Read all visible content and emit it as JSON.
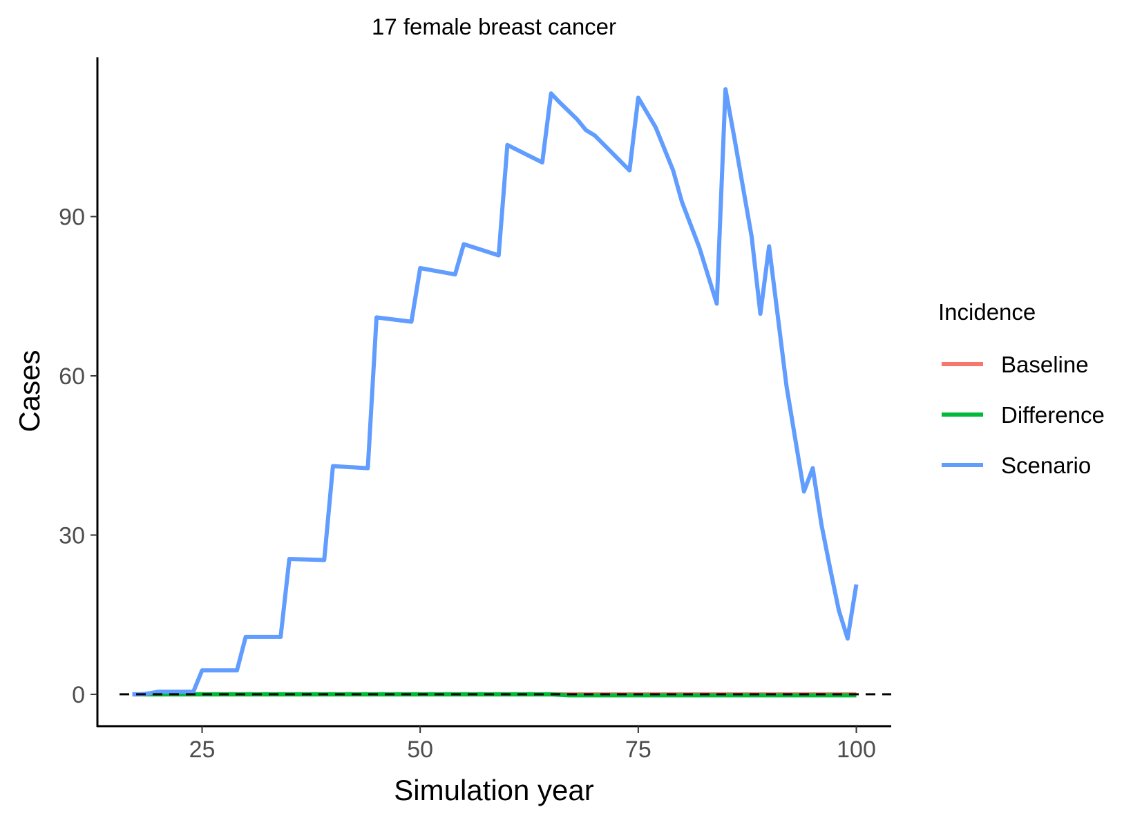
{
  "chart_data": {
    "type": "line",
    "title": "17 female breast cancer",
    "xlabel": "Simulation year",
    "ylabel": "Cases",
    "xlim": [
      13,
      104
    ],
    "ylim": [
      -6,
      120
    ],
    "x_ticks": [
      25,
      50,
      75,
      100
    ],
    "y_ticks": [
      0,
      30,
      60,
      90
    ],
    "grid": false,
    "reference_line": {
      "y": 0,
      "style": "dashed",
      "color": "#000000"
    },
    "legend": {
      "title": "Incidence",
      "position": "right"
    },
    "series": [
      {
        "name": "Baseline",
        "color": "#F8766D",
        "x": [
          17,
          20,
          24,
          25,
          29,
          30,
          34,
          35,
          39,
          40,
          44,
          45,
          49,
          50,
          54,
          55,
          59,
          60,
          64,
          65,
          67,
          70,
          74,
          75,
          80,
          84,
          85,
          89,
          90,
          94,
          95,
          99,
          100
        ],
        "y": [
          0,
          0,
          0,
          0,
          0,
          0,
          0,
          0,
          0,
          0,
          0,
          0,
          0,
          0,
          0,
          0,
          0,
          0,
          0,
          0,
          0,
          0,
          0,
          0,
          0,
          0,
          0,
          0,
          0,
          0,
          0,
          0,
          0
        ]
      },
      {
        "name": "Difference",
        "color": "#00BA38",
        "x": [
          17,
          20,
          24,
          25,
          29,
          30,
          34,
          35,
          39,
          40,
          44,
          45,
          49,
          50,
          54,
          55,
          59,
          60,
          64,
          65,
          67,
          70,
          74,
          75,
          80,
          84,
          85,
          89,
          90,
          94,
          95,
          99,
          100
        ],
        "y": [
          0,
          0,
          0,
          0,
          0,
          0,
          0,
          0,
          0,
          0,
          0,
          0,
          0,
          0,
          0,
          0,
          0,
          0,
          0,
          0,
          -0.2,
          -0.2,
          -0.2,
          -0.2,
          -0.2,
          -0.2,
          -0.2,
          -0.2,
          -0.2,
          -0.2,
          -0.2,
          -0.2,
          -0.2
        ]
      },
      {
        "name": "Scenario",
        "color": "#619CFF",
        "x": [
          17,
          18,
          19,
          20,
          24,
          25,
          29,
          30,
          34,
          35,
          39,
          40,
          44,
          45,
          49,
          50,
          54,
          55,
          59,
          60,
          64,
          65,
          66,
          68,
          69,
          70,
          72,
          74,
          75,
          77,
          79,
          80,
          82,
          84,
          85,
          86,
          88,
          89,
          90,
          92,
          94,
          95,
          96,
          97,
          98,
          99,
          100
        ],
        "y": [
          0,
          0,
          0.2,
          0.5,
          0.5,
          4.5,
          4.5,
          10.8,
          10.8,
          25.5,
          25.3,
          43.0,
          42.6,
          71.0,
          70.2,
          80.3,
          79.1,
          84.8,
          82.7,
          103.5,
          100.2,
          113.2,
          111.5,
          108.3,
          106.3,
          105.3,
          102.0,
          98.7,
          112.4,
          106.8,
          98.7,
          92.8,
          84.2,
          73.6,
          114.0,
          105.0,
          86.2,
          71.7,
          84.4,
          58.0,
          38.2,
          42.6,
          32.0,
          23.7,
          15.8,
          10.5,
          20.7
        ]
      }
    ]
  }
}
